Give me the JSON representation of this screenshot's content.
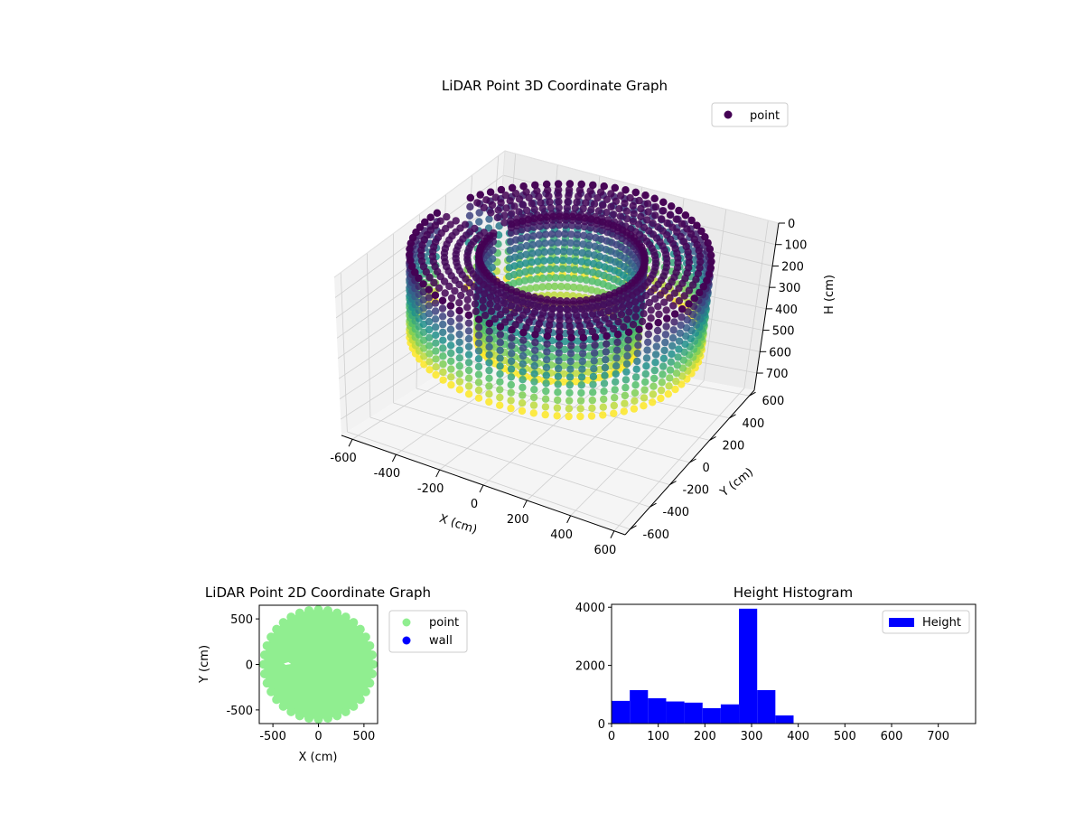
{
  "chart_data": [
    {
      "type": "scatter3d",
      "title": "LiDAR Point 3D Coordinate Graph",
      "xlabel": "X (cm)",
      "ylabel": "Y (cm)",
      "zlabel": "H (cm)",
      "xlim": [
        -650,
        650
      ],
      "ylim": [
        -650,
        650
      ],
      "zlim": [
        0,
        780
      ],
      "z_inverted": true,
      "xticks": [
        -600,
        -400,
        -200,
        0,
        200,
        400,
        600
      ],
      "yticks": [
        -600,
        -400,
        -200,
        0,
        200,
        400,
        600
      ],
      "zticks": [
        0,
        100,
        200,
        300,
        400,
        500,
        600,
        700
      ],
      "colormap": "viridis",
      "grid": true,
      "legend": {
        "placement": "top-right",
        "entries": [
          {
            "label": "point",
            "color": "#440154"
          }
        ]
      },
      "shape": {
        "type": "ring",
        "outer_radius": 600,
        "inner_radius": 330,
        "height_range": [
          0,
          390
        ],
        "gap_angles_deg": [
          [
            160,
            174
          ]
        ]
      }
    },
    {
      "type": "scatter",
      "title": "LiDAR Point 2D Coordinate Graph",
      "xlabel": "X (cm)",
      "ylabel": "Y (cm)",
      "xlim": [
        -650,
        650
      ],
      "ylim": [
        -650,
        650
      ],
      "xticks": [
        -500,
        0,
        500
      ],
      "yticks": [
        -500,
        0,
        500
      ],
      "legend": {
        "placement": "outside-right",
        "entries": [
          {
            "label": "point",
            "color": "#90ee90"
          },
          {
            "label": "wall",
            "color": "#0000ff"
          }
        ]
      },
      "shape": {
        "type": "disk",
        "radius": 600,
        "color": "#90ee90"
      }
    },
    {
      "type": "bar",
      "title": "Height Histogram",
      "xlabel": "",
      "ylabel": "",
      "xlim": [
        0,
        780
      ],
      "ylim": [
        0,
        4100
      ],
      "xticks": [
        0,
        100,
        200,
        300,
        400,
        500,
        600,
        700
      ],
      "yticks": [
        0,
        2000,
        4000
      ],
      "bin_width": 39,
      "bin_edges_start": 0,
      "color": "#0000ff",
      "legend": {
        "placement": "top-right",
        "entries": [
          {
            "label": "Height",
            "color": "#0000ff"
          }
        ]
      },
      "values": [
        780,
        1150,
        870,
        760,
        720,
        530,
        660,
        3950,
        1150,
        280,
        0,
        0,
        0,
        0,
        0,
        0,
        0,
        0,
        0,
        0
      ]
    }
  ]
}
